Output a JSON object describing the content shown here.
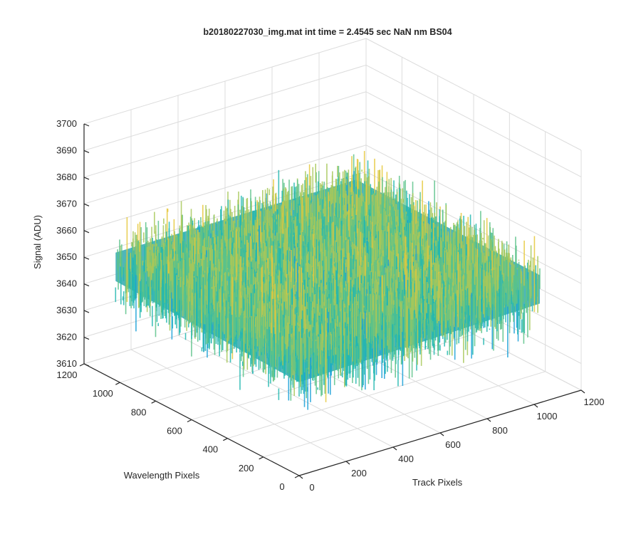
{
  "chart_data": {
    "type": "surface",
    "title": "b20180227030_img.mat int time = 2.4545 sec  NaN nm BS04",
    "xlabel": "Track Pixels",
    "ylabel": "Wavelength Pixels",
    "zlabel": "Signal (ADU)",
    "xlim": [
      0,
      1200
    ],
    "ylim": [
      0,
      1200
    ],
    "zlim": [
      3610,
      3700
    ],
    "xticks": [
      "0",
      "200",
      "400",
      "600",
      "800",
      "1000",
      "1200"
    ],
    "yticks": [
      "0",
      "200",
      "400",
      "600",
      "800",
      "1000",
      "1200"
    ],
    "zticks": [
      "3610",
      "3620",
      "3630",
      "3640",
      "3650",
      "3660",
      "3670",
      "3680",
      "3690",
      "3700"
    ],
    "data_extent": {
      "x": [
        0,
        1024
      ],
      "y": [
        0,
        1024
      ]
    },
    "surface_mean": 3652,
    "surface_noise_range": [
      3625,
      3680
    ],
    "grid": true,
    "colormap": [
      "#1aa0d8",
      "#23b8b0",
      "#5cc38a",
      "#a8c85a",
      "#e6c83c"
    ]
  }
}
